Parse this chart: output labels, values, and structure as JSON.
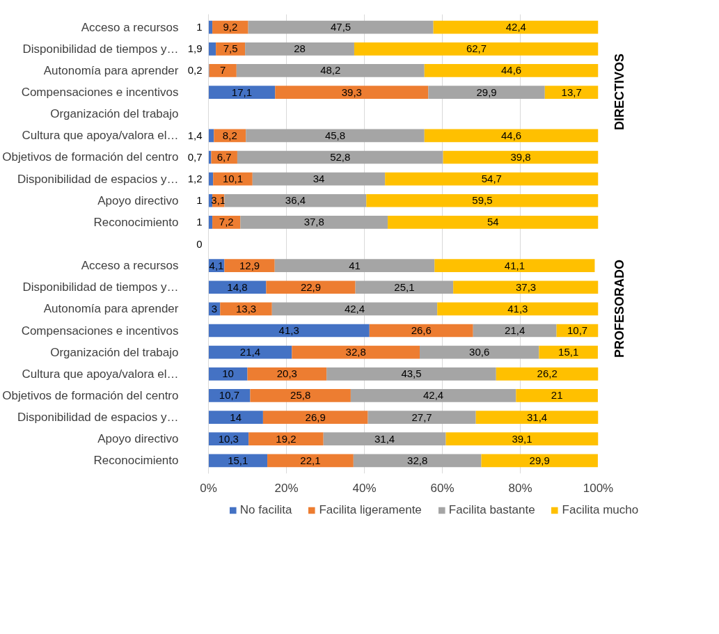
{
  "chart_data": {
    "type": "bar",
    "stacked": true,
    "orientation": "horizontal",
    "categories": [
      "Acceso a recursos",
      "Disponibilidad de tiempos y…",
      "Autonomía para aprender",
      "Compensaciones e incentivos",
      "Organización del trabajo",
      "Cultura que apoya/valora el…",
      "Objetivos de formación del centro",
      "Disponibilidad de espacios y…",
      "Apoyo directivo",
      "Reconocimiento",
      null,
      "Acceso a recursos",
      "Disponibilidad de tiempos y…",
      "Autonomía para aprender",
      "Compensaciones e incentivos",
      "Organización del trabajo",
      "Cultura que apoya/valora el…",
      "Objetivos de formación del centro",
      "Disponibilidad de espacios y…",
      "Apoyo directivo",
      "Reconocimiento"
    ],
    "series": [
      {
        "name": "No facilita",
        "color": "#4472c4",
        "values": [
          1,
          1.9,
          0.2,
          17.1,
          null,
          1.4,
          0.7,
          1.2,
          1,
          1,
          0,
          4.1,
          14.8,
          3,
          41.3,
          21.4,
          10,
          10.7,
          14,
          10.3,
          15.1
        ],
        "value_labels": [
          "1",
          "1,9",
          "0,2",
          "17,1",
          null,
          "1,4",
          "0,7",
          "1,2",
          "1",
          "1",
          "0",
          "4,1",
          "14,8",
          "3",
          "41,3",
          "21,4",
          "10",
          "10,7",
          "14",
          "10,3",
          "15,1"
        ]
      },
      {
        "name": "Facilita ligeramente",
        "color": "#ed7d31",
        "values": [
          9.2,
          7.5,
          7,
          39.3,
          null,
          8.2,
          6.7,
          10.1,
          3.1,
          7.2,
          null,
          12.9,
          22.9,
          13.3,
          26.6,
          32.8,
          20.3,
          25.8,
          26.9,
          19.2,
          22.1
        ],
        "value_labels": [
          "9,2",
          "7,5",
          "7",
          "39,3",
          null,
          "8,2",
          "6,7",
          "10,1",
          "3,1",
          "7,2",
          null,
          "12,9",
          "22,9",
          "13,3",
          "26,6",
          "32,8",
          "20,3",
          "25,8",
          "26,9",
          "19,2",
          "22,1"
        ]
      },
      {
        "name": "Facilita bastante",
        "color": "#a5a5a5",
        "values": [
          47.5,
          28,
          48.2,
          29.9,
          null,
          45.8,
          52.8,
          34,
          36.4,
          37.8,
          null,
          41,
          25.1,
          42.4,
          21.4,
          30.6,
          43.5,
          42.4,
          27.7,
          31.4,
          32.8
        ],
        "value_labels": [
          "47,5",
          "28",
          "48,2",
          "29,9",
          null,
          "45,8",
          "52,8",
          "34",
          "36,4",
          "37,8",
          null,
          "41",
          "25,1",
          "42,4",
          "21,4",
          "30,6",
          "43,5",
          "42,4",
          "27,7",
          "31,4",
          "32,8"
        ]
      },
      {
        "name": "Facilita mucho",
        "color": "#ffc000",
        "values": [
          42.4,
          62.7,
          44.6,
          13.7,
          null,
          44.6,
          39.8,
          54.7,
          59.5,
          54,
          null,
          41.1,
          37.3,
          41.3,
          10.7,
          15.1,
          26.2,
          21,
          31.4,
          39.1,
          29.9
        ],
        "value_labels": [
          "42,4",
          "62,7",
          "44,6",
          "13,7",
          null,
          "44,6",
          "39,8",
          "54,7",
          "59,5",
          "54",
          null,
          "41,1",
          "37,3",
          "41,3",
          "10,7",
          "15,1",
          "26,2",
          "21",
          "31,4",
          "39,1",
          "29,9"
        ]
      }
    ],
    "xlim": [
      0,
      100
    ],
    "xticks": [
      {
        "value": 0,
        "label": "0%"
      },
      {
        "value": 20,
        "label": "20%"
      },
      {
        "value": 40,
        "label": "40%"
      },
      {
        "value": 60,
        "label": "60%"
      },
      {
        "value": 80,
        "label": "80%"
      },
      {
        "value": 100,
        "label": "100%"
      }
    ],
    "grid": "x",
    "legend": "bottom",
    "annotations": [
      "DIRECTIVOS",
      "PROFESORADO"
    ]
  }
}
